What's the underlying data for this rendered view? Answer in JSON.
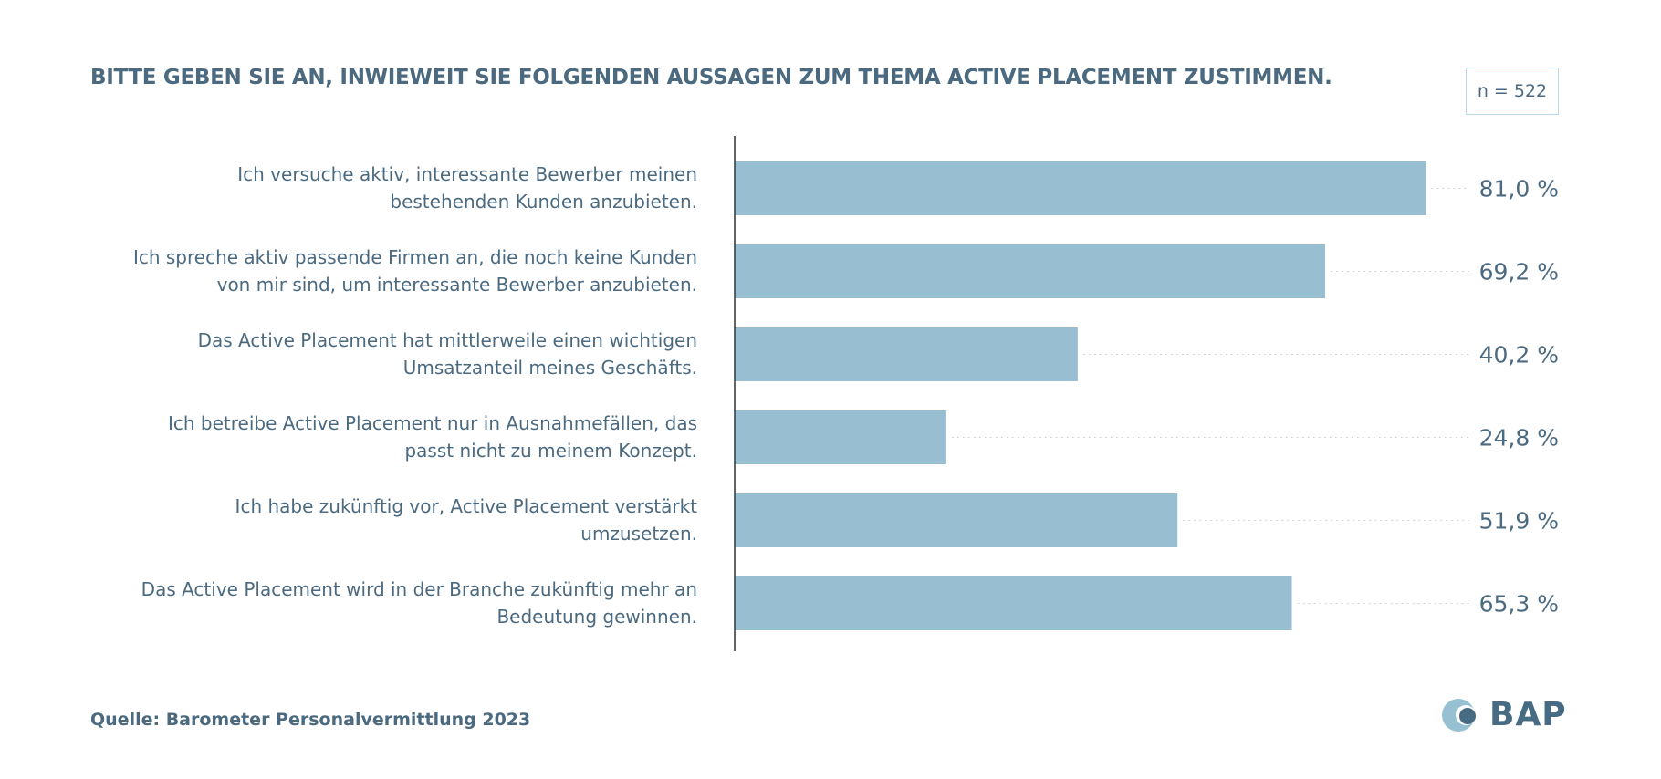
{
  "title": "BITTE GEBEN SIE AN, INWIEWEIT SIE FOLGENDEN AUSSAGEN ZUM THEMA ACTIVE PLACEMENT ZUSTIMMEN.",
  "sample_size": "n = 522",
  "source": "Quelle: Barometer Personalvermittlung 2023",
  "logo": {
    "text": "BAP",
    "icon": "bap-logo-icon"
  },
  "colors": {
    "bar": "#97bfd1",
    "text": "#4b6a80",
    "axis": "#333333",
    "logo_light": "#97c1d2",
    "logo_dark": "#476b82"
  },
  "chart_data": {
    "type": "bar",
    "orientation": "horizontal",
    "categories": [
      [
        "Ich versuche aktiv, interessante Bewerber meinen",
        "bestehenden Kunden anzubieten."
      ],
      [
        "Ich spreche aktiv passende Firmen an, die noch keine Kunden",
        "von mir sind, um interessante Bewerber anzubieten."
      ],
      [
        "Das Active Placement hat mittlerweile einen wichtigen",
        "Umsatzanteil meines Geschäfts."
      ],
      [
        "Ich betreibe Active Placement nur in Ausnahmefällen, das",
        "passt nicht zu meinem Konzept."
      ],
      [
        "Ich habe zukünftig vor, Active Placement verstärkt",
        "umzusetzen."
      ],
      [
        "Das Active Placement wird in der Branche zukünftig mehr an",
        "Bedeutung gewinnen."
      ]
    ],
    "values": [
      81.0,
      69.2,
      40.2,
      24.8,
      51.9,
      65.3
    ],
    "value_labels": [
      "81,0 %",
      "69,2 %",
      "40,2 %",
      "24,8 %",
      "51,9 %",
      "65,3 %"
    ],
    "xlim": [
      0,
      100
    ],
    "unit": "%",
    "grid": false,
    "dotted_leaders": true
  }
}
